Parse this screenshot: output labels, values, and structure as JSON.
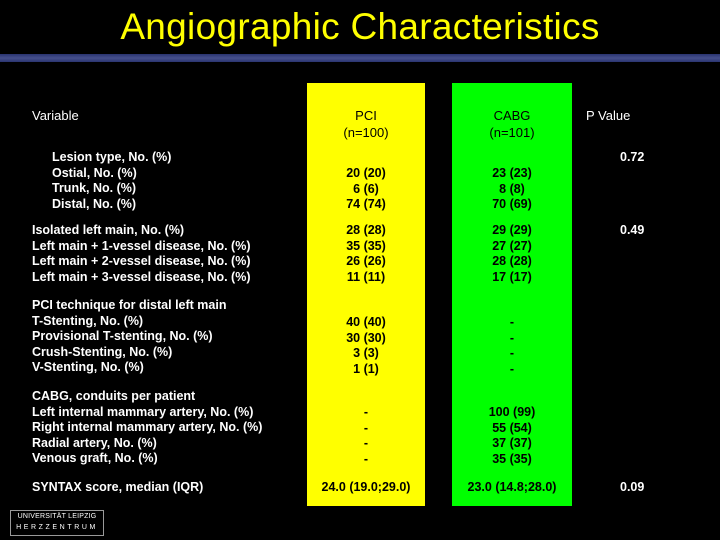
{
  "title": "Angiographic Characteristics",
  "headers": {
    "variable": "Variable",
    "pci": "PCI",
    "pci_n": "(n=100)",
    "cabg": "CABG",
    "cabg_n": "(n=101)",
    "pvalue": "P Value"
  },
  "rows": [
    {
      "variable": "Lesion type, No. (%)\nOstial, No. (%)\nTrunk, No. (%)\nDistal, No. (%)",
      "pci": "20 (20)\n6 (6)\n74 (74)",
      "cabg": "23 (23)\n8 (8)\n70 (69)",
      "p": "0.72"
    },
    {
      "variable": "Isolated left main, No. (%)\nLeft main + 1-vessel disease, No. (%)\nLeft main + 2-vessel disease, No. (%)\nLeft main + 3-vessel disease, No. (%)",
      "pci": "28 (28)\n35 (35)\n26 (26)\n11 (11)",
      "cabg": "29 (29)\n27 (27)\n28 (28)\n17 (17)",
      "p": "0.49"
    },
    {
      "variable": "PCI technique for distal left main\nT-Stenting, No. (%)\nProvisional T-stenting, No. (%)\nCrush-Stenting, No. (%)\nV-Stenting, No. (%)",
      "pci": "40 (40)\n30 (30)\n3 (3)\n1 (1)",
      "cabg": "-\n-\n-\n-",
      "p": ""
    },
    {
      "variable": "CABG, conduits per patient\nLeft internal mammary artery, No. (%)\nRight internal mammary artery, No. (%)\nRadial artery, No. (%)\nVenous graft, No. (%)",
      "pci": "-\n-\n-\n-",
      "cabg": "100 (99)\n55 (54)\n37 (37)\n35 (35)",
      "p": ""
    },
    {
      "variable": "SYNTAX score, median (IQR)",
      "pci": "24.0 (19.0;29.0)",
      "cabg": "23.0 (14.8;28.0)",
      "p": "0.09"
    }
  ],
  "logo": {
    "line1": "UNIVERSITÄT LEIPZIG",
    "line2": "HERZZENTRUM"
  },
  "colors": {
    "background": "#000000",
    "title": "#ffff00",
    "pci_column": "#ffff00",
    "cabg_column": "#00ff00",
    "text": "#ffffff"
  }
}
